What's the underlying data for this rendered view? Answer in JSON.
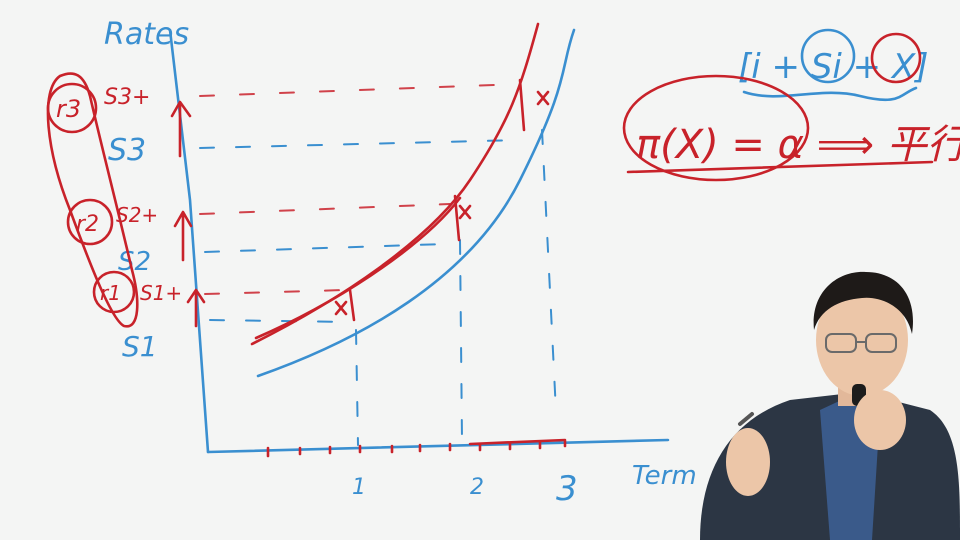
{
  "board": {
    "y_axis_label": "Rates",
    "x_axis_label": "Term",
    "x_ticks": [
      "1",
      "2",
      "3"
    ],
    "spot_labels": [
      "S3",
      "S2",
      "S1"
    ],
    "spot_plus_labels": [
      "S3+",
      "S2+",
      "S1+"
    ],
    "spread_labels": [
      "r3",
      "r2",
      "r1"
    ],
    "formula_top": "[i + Si + X]",
    "formula_main": "π(X) = α ⟹ 平行"
  },
  "colors": {
    "whiteboard": "#f4f5f4",
    "blue_ink": "#3a8fd0",
    "red_ink": "#c8222a"
  }
}
